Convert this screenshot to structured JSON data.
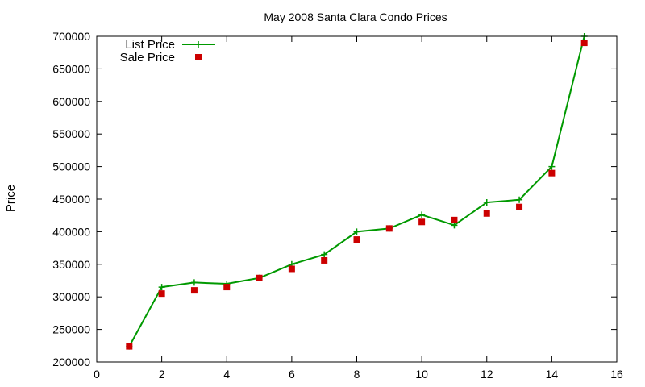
{
  "chart_data": {
    "type": "line",
    "title": "May 2008 Santa Clara Condo Prices",
    "xlabel": "",
    "ylabel": "Price",
    "xlim": [
      0,
      16
    ],
    "ylim": [
      200000,
      700000
    ],
    "x_ticks": [
      0,
      2,
      4,
      6,
      8,
      10,
      12,
      14,
      16
    ],
    "y_ticks": [
      200000,
      250000,
      300000,
      350000,
      400000,
      450000,
      500000,
      550000,
      600000,
      650000,
      700000
    ],
    "x_tick_labels": [
      "0",
      "2",
      "4",
      "6",
      "8",
      "10",
      "12",
      "14",
      "16"
    ],
    "y_tick_labels": [
      "200000",
      "250000",
      "300000",
      "350000",
      "400000",
      "450000",
      "500000",
      "550000",
      "600000",
      "650000",
      "700000"
    ],
    "grid": false,
    "legend_position": "top-left",
    "series": [
      {
        "name": "List Price",
        "style": "linespoints",
        "marker": "plus",
        "color": "#009900",
        "x": [
          1,
          2,
          3,
          4,
          5,
          6,
          7,
          8,
          9,
          10,
          11,
          12,
          13,
          14,
          15
        ],
        "y": [
          224000,
          315000,
          322000,
          320000,
          329000,
          350000,
          365000,
          400000,
          405000,
          426000,
          410000,
          445000,
          449000,
          500000,
          700000
        ]
      },
      {
        "name": "Sale Price",
        "style": "points",
        "marker": "square",
        "color": "#cc0000",
        "x": [
          1,
          2,
          3,
          4,
          5,
          6,
          7,
          8,
          9,
          10,
          11,
          12,
          13,
          14,
          15
        ],
        "y": [
          224000,
          305000,
          310000,
          315000,
          329000,
          343000,
          356000,
          388000,
          405000,
          415000,
          418000,
          428000,
          438000,
          490000,
          690000
        ]
      }
    ]
  }
}
